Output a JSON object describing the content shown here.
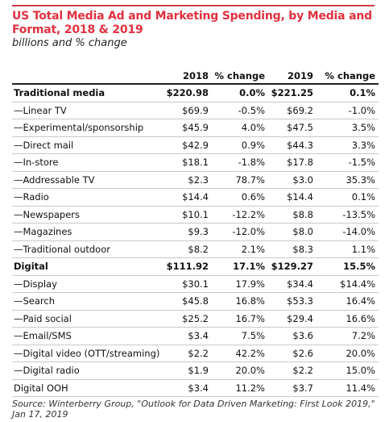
{
  "chart_data": {
    "type": "table",
    "title": "US Total Media Ad and Marketing Spending, by Media and Format, 2018 & 2019",
    "subtitle": "billions and % change",
    "columns": [
      "",
      "2018",
      "% change",
      "2019",
      "% change"
    ],
    "rows": [
      {
        "label": "Traditional media",
        "bold": true,
        "values": [
          "$220.98",
          "0.0%",
          "$221.25",
          "0.1%"
        ]
      },
      {
        "label": "—Linear TV",
        "values": [
          "$69.9",
          "-0.5%",
          "$69.2",
          "-1.0%"
        ]
      },
      {
        "label": "—Experimental/sponsorship",
        "values": [
          "$45.9",
          "4.0%",
          "$47.5",
          "3.5%"
        ]
      },
      {
        "label": "—Direct mail",
        "values": [
          "$42.9",
          "0.9%",
          "$44.3",
          "3.3%"
        ]
      },
      {
        "label": "—In-store",
        "values": [
          "$18.1",
          "-1.8%",
          "$17.8",
          "-1.5%"
        ]
      },
      {
        "label": "—Addressable TV",
        "values": [
          "$2.3",
          "78.7%",
          "$3.0",
          "35.3%"
        ]
      },
      {
        "label": "—Radio",
        "values": [
          "$14.4",
          "0.6%",
          "$14.4",
          "0.1%"
        ]
      },
      {
        "label": "—Newspapers",
        "values": [
          "$10.1",
          "-12.2%",
          "$8.8",
          "-13.5%"
        ]
      },
      {
        "label": "—Magazines",
        "values": [
          "$9.3",
          "-12.0%",
          "$8.0",
          "-14.0%"
        ]
      },
      {
        "label": "—Traditional outdoor",
        "values": [
          "$8.2",
          "2.1%",
          "$8.3",
          "1.1%"
        ]
      },
      {
        "label": "Digital",
        "bold": true,
        "values": [
          "$111.92",
          "17.1%",
          "$129.27",
          "15.5%"
        ]
      },
      {
        "label": "—Display",
        "values": [
          "$30.1",
          "17.9%",
          "$34.4",
          "$14.4%"
        ]
      },
      {
        "label": "—Search",
        "values": [
          "$45.8",
          "16.8%",
          "$53.3",
          "16.4%"
        ]
      },
      {
        "label": "—Paid social",
        "values": [
          "$25.2",
          "16.7%",
          "$29.4",
          "16.6%"
        ]
      },
      {
        "label": "—Email/SMS",
        "values": [
          "$3.4",
          "7.5%",
          "$3.6",
          "7.2%"
        ]
      },
      {
        "label": "—Digital video (OTT/streaming)",
        "values": [
          "$2.2",
          "42.2%",
          "$2.6",
          "20.0%"
        ]
      },
      {
        "label": "—Digital radio",
        "values": [
          "$1.9",
          "20.0%",
          "$2.2",
          "15.0%"
        ]
      },
      {
        "label": "Digital OOH",
        "values": [
          "$3.4",
          "11.2%",
          "$3.7",
          "11.4%"
        ]
      }
    ],
    "source": "Source: Winterberry Group, \"Outlook for Data Driven Marketing: First Look 2019,\" Jan 17, 2019"
  }
}
